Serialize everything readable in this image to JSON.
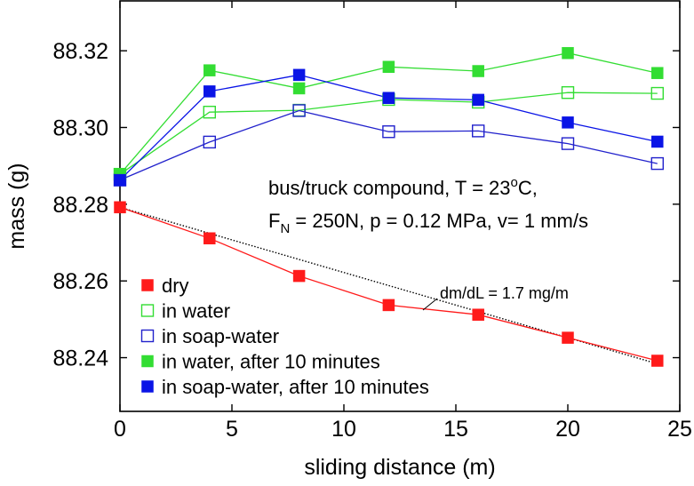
{
  "chart_data": {
    "type": "line",
    "xlabel": "sliding distance  (m)",
    "ylabel": "mass  (g)",
    "xlim": [
      0,
      25
    ],
    "ylim": [
      88.226,
      88.333
    ],
    "xticks": [
      0,
      5,
      10,
      15,
      20,
      25
    ],
    "xtick_labels": [
      "0",
      "5",
      "10",
      "15",
      "20",
      "25"
    ],
    "yticks": [
      88.24,
      88.26,
      88.28,
      88.3,
      88.32
    ],
    "ytick_labels": [
      "88.24",
      "88.26",
      "88.28",
      "88.30",
      "88.32"
    ],
    "grid": false,
    "legend_position": "bottom-left",
    "annotations": {
      "condition_line1_prefix": "bus/truck compound, T = 23",
      "condition_line1_sup": "o",
      "condition_line1_suffix": "C,",
      "condition_line2_f": "F",
      "condition_line2_sub": "N",
      "condition_line2_rest": " = 250N, p = 0.12 MPa, v= 1 mm/s",
      "slope_label": "dm/dL = 1.7 mg/m"
    },
    "fit_line": {
      "name": "dm/dL = 1.7 mg/m",
      "x": [
        0,
        24
      ],
      "y": [
        88.2792,
        88.2384
      ],
      "color": "#000000",
      "style": "dotted"
    },
    "series": [
      {
        "name": "dry",
        "color": "#ff1a1a",
        "marker": "filled-square",
        "x": [
          0,
          4,
          8,
          12,
          16,
          20,
          24
        ],
        "y": [
          88.2792,
          88.2711,
          88.2613,
          88.2537,
          88.2512,
          88.2452,
          88.2392
        ]
      },
      {
        "name": "in water",
        "color": "#33dd33",
        "marker": "open-square",
        "x": [
          0,
          4,
          8,
          12,
          16,
          20,
          24
        ],
        "y": [
          88.2878,
          88.304,
          88.3045,
          88.3073,
          88.3066,
          88.3091,
          88.3089
        ]
      },
      {
        "name": "in soap-water",
        "color": "#2222cc",
        "marker": "open-square",
        "x": [
          0,
          4,
          8,
          12,
          16,
          20,
          24
        ],
        "y": [
          88.2863,
          88.2962,
          88.3044,
          88.2989,
          88.2991,
          88.2958,
          88.2906
        ]
      },
      {
        "name": "in water, after 10 minutes",
        "color": "#33dd33",
        "marker": "filled-square",
        "x": [
          0,
          4,
          8,
          12,
          16,
          20,
          24
        ],
        "y": [
          88.2878,
          88.3149,
          88.3102,
          88.3158,
          88.3147,
          88.3194,
          88.3142
        ]
      },
      {
        "name": "in soap-water, after 10 minutes",
        "color": "#0a14e6",
        "marker": "filled-square",
        "x": [
          0,
          4,
          8,
          12,
          16,
          20,
          24
        ],
        "y": [
          88.2863,
          88.3094,
          88.3137,
          88.3077,
          88.3072,
          88.3013,
          88.2963
        ]
      }
    ]
  }
}
